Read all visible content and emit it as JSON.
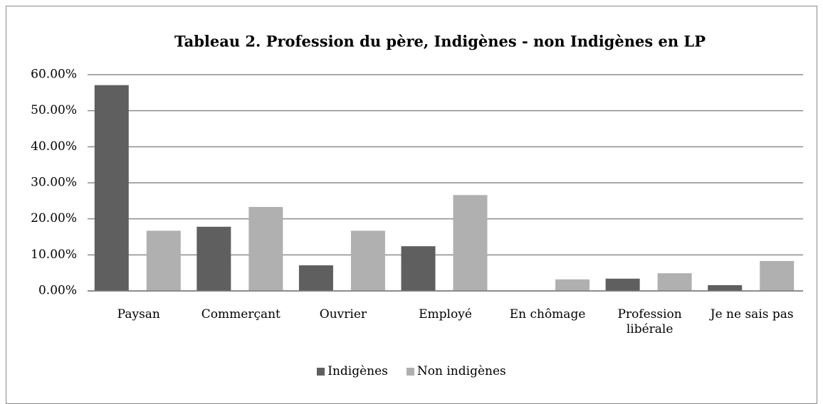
{
  "chart_data": {
    "type": "bar",
    "title": "Tableau 2. Profession du père, Indigènes - non Indigènes en LP",
    "categories": [
      "Paysan",
      "Commerçant",
      "Ouvrier",
      "Employé",
      "En chômage",
      "Profession libérale",
      "Je ne sais pas"
    ],
    "series": [
      {
        "name": "Indigènes",
        "color": "#5f5f5f",
        "values": [
          57.1,
          17.8,
          7.1,
          12.4,
          0,
          3.4,
          1.6
        ]
      },
      {
        "name": "Non indigènes",
        "color": "#b0b0b0",
        "values": [
          16.7,
          23.3,
          16.7,
          26.6,
          3.2,
          4.9,
          8.3
        ]
      }
    ],
    "ylim": [
      0,
      60
    ],
    "yticks": [
      {
        "value": 0,
        "label": "0.00%"
      },
      {
        "value": 10,
        "label": "10.00%"
      },
      {
        "value": 20,
        "label": "20.00%"
      },
      {
        "value": 30,
        "label": "30.00%"
      },
      {
        "value": 40,
        "label": "40.00%"
      },
      {
        "value": 50,
        "label": "50.00%"
      },
      {
        "value": 60,
        "label": "60.00%"
      }
    ],
    "grid": true,
    "legend": "bottom"
  }
}
